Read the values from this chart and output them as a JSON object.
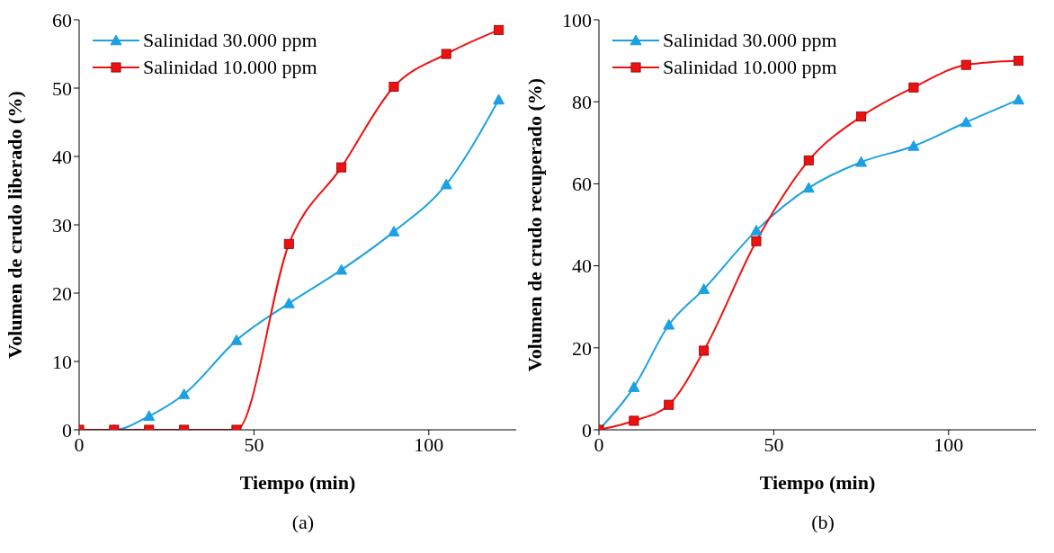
{
  "chart_data": [
    {
      "type": "line",
      "xlabel": "Tiempo (min)",
      "ylabel": "Volumen de crudo liberado (%)",
      "annotations": [
        "(a)"
      ],
      "legend": "top left",
      "grid": false,
      "xlim": [
        0,
        125
      ],
      "xticks": [
        0,
        50,
        100
      ],
      "ylim": [
        0,
        60
      ],
      "yticks": [
        0,
        10,
        20,
        30,
        40,
        50,
        60
      ],
      "x": [
        0,
        10,
        20,
        30,
        45,
        60,
        75,
        90,
        105,
        120
      ],
      "series": [
        {
          "name": "Salinidad 30.000 ppm",
          "color": "#1ba1e2",
          "marker": "triangle",
          "values": [
            0,
            0,
            2,
            5.2,
            13.1,
            18.5,
            23.4,
            29,
            35.9,
            48.3
          ]
        },
        {
          "name": "Salinidad 10.000 ppm",
          "color": "#ee1111",
          "marker": "square",
          "values": [
            0,
            0,
            0,
            0,
            0,
            27.2,
            38.4,
            50.2,
            55,
            58.5
          ]
        }
      ]
    },
    {
      "type": "line",
      "xlabel": "Tiempo (min)",
      "ylabel": "Volumen de crudo recuperado (%)",
      "annotations": [
        "(b)"
      ],
      "legend": "top left",
      "grid": false,
      "xlim": [
        0,
        125
      ],
      "xticks": [
        0,
        50,
        100
      ],
      "ylim": [
        0,
        100
      ],
      "yticks": [
        0,
        20,
        40,
        60,
        80,
        100
      ],
      "x": [
        0,
        10,
        20,
        30,
        45,
        60,
        75,
        90,
        105,
        120
      ],
      "series": [
        {
          "name": "Salinidad 30.000 ppm",
          "color": "#1ba1e2",
          "marker": "triangle",
          "values": [
            0,
            10.4,
            25.6,
            34.3,
            48.6,
            59,
            65.3,
            69.2,
            75,
            80.5
          ]
        },
        {
          "name": "Salinidad 10.000 ppm",
          "color": "#ee1111",
          "marker": "square",
          "values": [
            0,
            2.2,
            6.1,
            19.3,
            46,
            65.7,
            76.4,
            83.5,
            89,
            90
          ]
        }
      ]
    }
  ]
}
